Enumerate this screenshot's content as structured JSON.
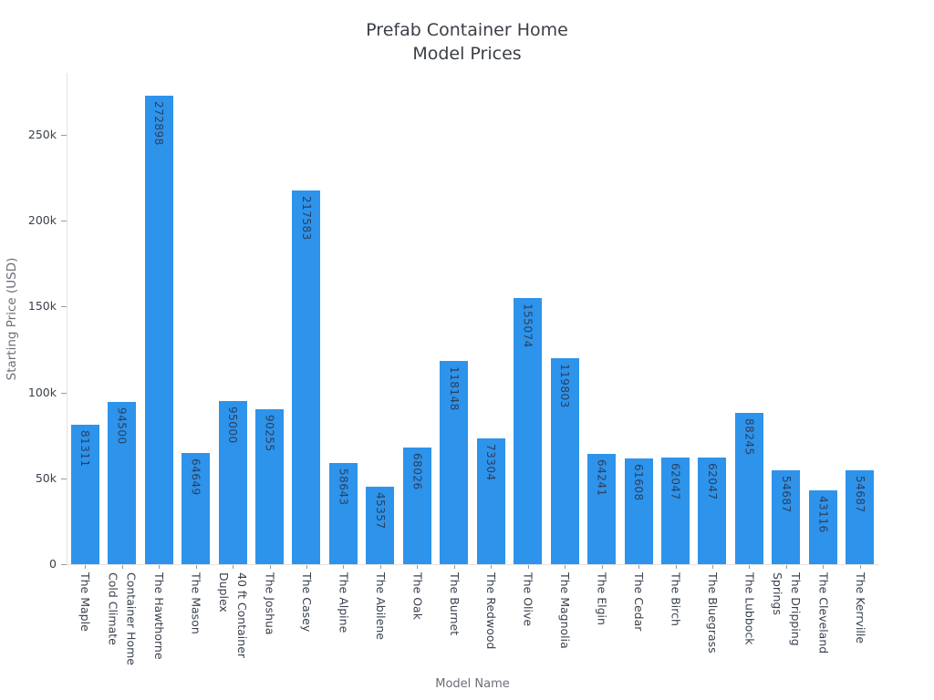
{
  "title": {
    "line1": "Prefab Container Home",
    "line2": "Model Prices"
  },
  "chart_data": {
    "type": "bar",
    "title": "Prefab Container Home Model Prices",
    "xlabel": "Model Name",
    "ylabel": "Starting Price (USD)",
    "ylim": [
      0,
      286000
    ],
    "grid": false,
    "legend": false,
    "bar_color": "#2e93ea",
    "value_label_color": "#2a3f5f",
    "yticks": [
      {
        "value": 0,
        "label": "0"
      },
      {
        "value": 50000,
        "label": "50k"
      },
      {
        "value": 100000,
        "label": "100k"
      },
      {
        "value": 150000,
        "label": "150k"
      },
      {
        "value": 200000,
        "label": "200k"
      },
      {
        "value": 250000,
        "label": "250k"
      }
    ],
    "categories": [
      "The Maple",
      "Cold Climate Container Home",
      "The Hawthorne",
      "The Mason",
      "40 ft Container Duplex",
      "The Joshua",
      "The Casey",
      "The Alpine",
      "The Abilene",
      "The Oak",
      "The Burnet",
      "The Redwood",
      "The Olive",
      "The Magnolia",
      "The Elgin",
      "The Cedar",
      "The Birch",
      "The Bluegrass",
      "The Lubbock",
      "The Dripping Springs",
      "The Cleveland",
      "The Kerrville"
    ],
    "category_lines": [
      [
        "The Maple"
      ],
      [
        "Cold Climate",
        "Container Home"
      ],
      [
        "The Hawthorne"
      ],
      [
        "The Mason"
      ],
      [
        "Duplex",
        "40 ft Container"
      ],
      [
        "The Joshua"
      ],
      [
        "The Casey"
      ],
      [
        "The Alpine"
      ],
      [
        "The Abilene"
      ],
      [
        "The Oak"
      ],
      [
        "The Burnet"
      ],
      [
        "The Redwood"
      ],
      [
        "The Olive"
      ],
      [
        "The Magnolia"
      ],
      [
        "The Elgin"
      ],
      [
        "The Cedar"
      ],
      [
        "The Birch"
      ],
      [
        "The Bluegrass"
      ],
      [
        "The Lubbock"
      ],
      [
        "Springs",
        "The Dripping"
      ],
      [
        "The Cleveland"
      ],
      [
        "The Kerrville"
      ]
    ],
    "values": [
      81311,
      94500,
      272898,
      64649,
      95000,
      90255,
      217583,
      58643,
      45357,
      68026,
      118148,
      73304,
      155074,
      119803,
      64241,
      61608,
      62047,
      62047,
      88245,
      54687,
      43116,
      54687
    ]
  }
}
